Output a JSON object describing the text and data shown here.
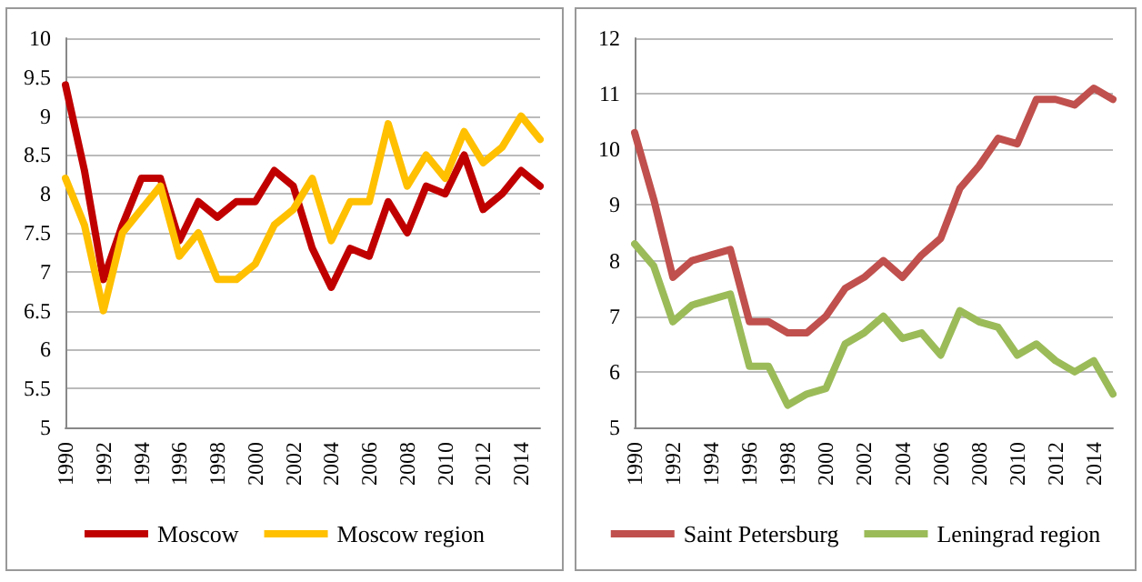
{
  "chart_data": [
    {
      "type": "line",
      "categories": [
        "1990",
        null,
        "1992",
        null,
        "1994",
        null,
        "1996",
        null,
        "1998",
        null,
        "2000",
        null,
        "2002",
        null,
        "2004",
        null,
        "2006",
        null,
        "2008",
        null,
        "2010",
        null,
        "2012",
        null,
        "2014",
        null
      ],
      "series": [
        {
          "name": "Moscow",
          "color": "#c00000",
          "values": [
            9.4,
            8.3,
            6.9,
            7.6,
            8.2,
            8.2,
            7.4,
            7.9,
            7.7,
            7.9,
            7.9,
            8.3,
            8.1,
            7.3,
            6.8,
            7.3,
            7.2,
            7.9,
            7.5,
            8.1,
            8.0,
            8.5,
            7.8,
            8.0,
            8.3,
            8.1
          ]
        },
        {
          "name": "Moscow region",
          "color": "#ffc000",
          "values": [
            8.2,
            7.6,
            6.5,
            7.5,
            7.8,
            8.1,
            7.2,
            7.5,
            6.9,
            6.9,
            7.1,
            7.6,
            7.8,
            8.2,
            7.4,
            7.9,
            7.9,
            8.9,
            8.1,
            8.5,
            8.2,
            8.8,
            8.4,
            8.6,
            9.0,
            8.7
          ]
        }
      ],
      "ylim": [
        5,
        10
      ],
      "yticks": [
        5,
        5.5,
        6,
        6.5,
        7,
        7.5,
        8,
        8.5,
        9,
        9.5,
        10
      ],
      "grid": "y",
      "legend": "bottom",
      "marker": "none",
      "line_style": "solid"
    },
    {
      "type": "line",
      "categories": [
        "1990",
        null,
        "1992",
        null,
        "1994",
        null,
        "1996",
        null,
        "1998",
        null,
        "2000",
        null,
        "2002",
        null,
        "2004",
        null,
        "2006",
        null,
        "2008",
        null,
        "2010",
        null,
        "2012",
        null,
        "2014",
        null
      ],
      "series": [
        {
          "name": "Saint Petersburg",
          "color": "#c0504d",
          "values": [
            10.3,
            9.1,
            7.7,
            8.0,
            8.1,
            8.2,
            6.9,
            6.9,
            6.7,
            6.7,
            7.0,
            7.5,
            7.7,
            8.0,
            7.7,
            8.1,
            8.4,
            9.3,
            9.7,
            10.2,
            10.1,
            10.9,
            10.9,
            10.8,
            11.1,
            10.9
          ]
        },
        {
          "name": "Leningrad region",
          "color": "#9bbb59",
          "values": [
            8.3,
            7.9,
            6.9,
            7.2,
            7.3,
            7.4,
            6.1,
            6.1,
            5.4,
            5.6,
            5.7,
            6.5,
            6.7,
            7.0,
            6.6,
            6.7,
            6.3,
            7.1,
            6.9,
            6.8,
            6.3,
            6.5,
            6.2,
            6.0,
            6.2,
            5.6
          ]
        }
      ],
      "ylim": [
        5,
        12
      ],
      "yticks": [
        5,
        6,
        7,
        8,
        9,
        10,
        11,
        12
      ],
      "grid": "y",
      "legend": "bottom",
      "marker": "none",
      "line_style": "solid"
    }
  ]
}
